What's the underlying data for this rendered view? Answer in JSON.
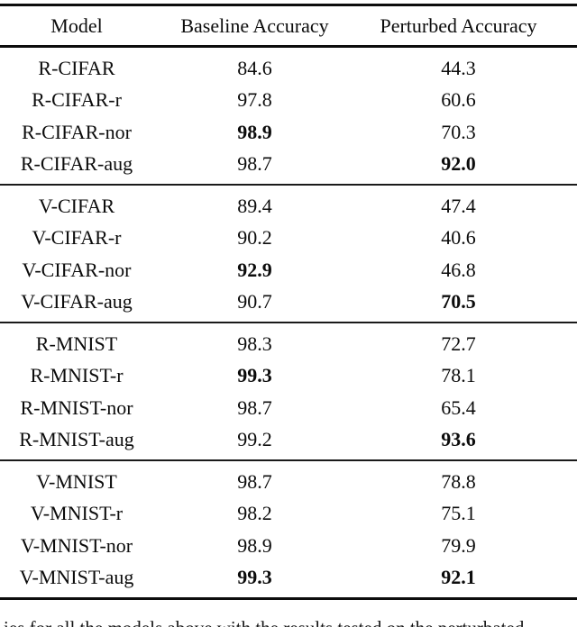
{
  "table": {
    "columns": {
      "model": "Model",
      "baseline": "Baseline Accuracy",
      "perturbed": "Perturbed Accuracy"
    },
    "groups": [
      {
        "rows": [
          {
            "model": "R-CIFAR",
            "baseline": "84.6",
            "perturbed": "44.3",
            "baseline_bold": false,
            "perturbed_bold": false
          },
          {
            "model": "R-CIFAR-r",
            "baseline": "97.8",
            "perturbed": "60.6",
            "baseline_bold": false,
            "perturbed_bold": false
          },
          {
            "model": "R-CIFAR-nor",
            "baseline": "98.9",
            "perturbed": "70.3",
            "baseline_bold": true,
            "perturbed_bold": false
          },
          {
            "model": "R-CIFAR-aug",
            "baseline": "98.7",
            "perturbed": "92.0",
            "baseline_bold": false,
            "perturbed_bold": true
          }
        ]
      },
      {
        "rows": [
          {
            "model": "V-CIFAR",
            "baseline": "89.4",
            "perturbed": "47.4",
            "baseline_bold": false,
            "perturbed_bold": false
          },
          {
            "model": "V-CIFAR-r",
            "baseline": "90.2",
            "perturbed": "40.6",
            "baseline_bold": false,
            "perturbed_bold": false
          },
          {
            "model": "V-CIFAR-nor",
            "baseline": "92.9",
            "perturbed": "46.8",
            "baseline_bold": true,
            "perturbed_bold": false
          },
          {
            "model": "V-CIFAR-aug",
            "baseline": "90.7",
            "perturbed": "70.5",
            "baseline_bold": false,
            "perturbed_bold": true
          }
        ]
      },
      {
        "rows": [
          {
            "model": "R-MNIST",
            "baseline": "98.3",
            "perturbed": "72.7",
            "baseline_bold": false,
            "perturbed_bold": false
          },
          {
            "model": "R-MNIST-r",
            "baseline": "99.3",
            "perturbed": "78.1",
            "baseline_bold": true,
            "perturbed_bold": false
          },
          {
            "model": "R-MNIST-nor",
            "baseline": "98.7",
            "perturbed": "65.4",
            "baseline_bold": false,
            "perturbed_bold": false
          },
          {
            "model": "R-MNIST-aug",
            "baseline": "99.2",
            "perturbed": "93.6",
            "baseline_bold": false,
            "perturbed_bold": true
          }
        ]
      },
      {
        "rows": [
          {
            "model": "V-MNIST",
            "baseline": "98.7",
            "perturbed": "78.8",
            "baseline_bold": false,
            "perturbed_bold": false
          },
          {
            "model": "V-MNIST-r",
            "baseline": "98.2",
            "perturbed": "75.1",
            "baseline_bold": false,
            "perturbed_bold": false
          },
          {
            "model": "V-MNIST-nor",
            "baseline": "98.9",
            "perturbed": "79.9",
            "baseline_bold": false,
            "perturbed_bold": false
          },
          {
            "model": "V-MNIST-aug",
            "baseline": "99.3",
            "perturbed": "92.1",
            "baseline_bold": true,
            "perturbed_bold": true
          }
        ]
      }
    ]
  },
  "caption_fragment": "ies for all the models above with the results tested on the perturbated"
}
